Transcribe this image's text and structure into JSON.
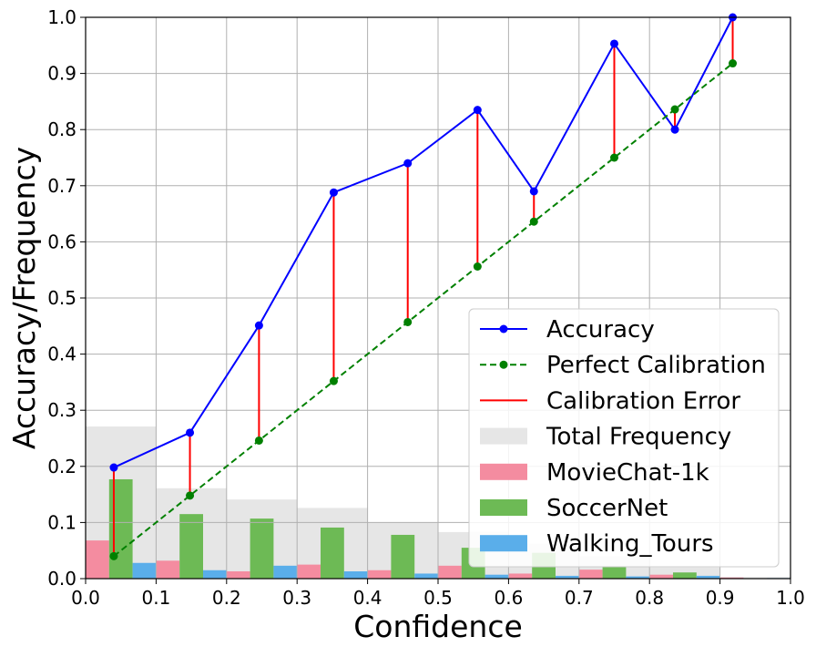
{
  "chart_data": {
    "type": "line",
    "xlabel": "Confidence",
    "ylabel": "Accuracy/Frequency",
    "xlim": [
      0.0,
      1.0
    ],
    "ylim": [
      0.0,
      1.0
    ],
    "xticks": [
      "0.0",
      "0.1",
      "0.2",
      "0.3",
      "0.4",
      "0.5",
      "0.6",
      "0.7",
      "0.8",
      "0.9",
      "1.0"
    ],
    "yticks": [
      "0.0",
      "0.1",
      "0.2",
      "0.3",
      "0.4",
      "0.5",
      "0.6",
      "0.7",
      "0.8",
      "0.9",
      "1.0"
    ],
    "grid": true,
    "legend_position": "lower-right",
    "line_series": [
      {
        "name": "Accuracy",
        "color": "#0000ff",
        "marker": "circle",
        "linestyle": "solid",
        "x": [
          0.04,
          0.148,
          0.246,
          0.352,
          0.457,
          0.556,
          0.636,
          0.75,
          0.836,
          0.918
        ],
        "y": [
          0.198,
          0.26,
          0.451,
          0.688,
          0.74,
          0.835,
          0.69,
          0.953,
          0.8,
          1.0
        ]
      },
      {
        "name": "Perfect Calibration",
        "color": "#008000",
        "marker": "circle",
        "linestyle": "dashed",
        "x": [
          0.04,
          0.148,
          0.246,
          0.352,
          0.457,
          0.556,
          0.636,
          0.75,
          0.836,
          0.918
        ],
        "y": [
          0.04,
          0.148,
          0.246,
          0.352,
          0.457,
          0.556,
          0.636,
          0.75,
          0.836,
          0.918
        ]
      }
    ],
    "error_series": {
      "name": "Calibration Error",
      "color": "#ff0000"
    },
    "bin_edges": [
      0.0,
      0.1,
      0.2,
      0.3,
      0.4,
      0.5,
      0.6,
      0.7,
      0.8,
      0.9,
      1.0
    ],
    "bar_series": [
      {
        "name": "Total Frequency",
        "color": "#e6e6e6",
        "values": [
          0.271,
          0.161,
          0.141,
          0.126,
          0.1,
          0.083,
          0.062,
          0.04,
          0.02,
          0.003
        ]
      },
      {
        "name": "MovieChat-1k",
        "color": "#f48ca0",
        "values": [
          0.068,
          0.032,
          0.013,
          0.025,
          0.015,
          0.023,
          0.009,
          0.016,
          0.007,
          0.002
        ]
      },
      {
        "name": "SoccerNet",
        "color": "#6dba55",
        "values": [
          0.177,
          0.115,
          0.107,
          0.091,
          0.078,
          0.055,
          0.046,
          0.021,
          0.011,
          0.0
        ]
      },
      {
        "name": "Walking_Tours",
        "color": "#5aaeea",
        "values": [
          0.028,
          0.015,
          0.023,
          0.013,
          0.009,
          0.007,
          0.005,
          0.004,
          0.005,
          0.001
        ]
      }
    ]
  }
}
